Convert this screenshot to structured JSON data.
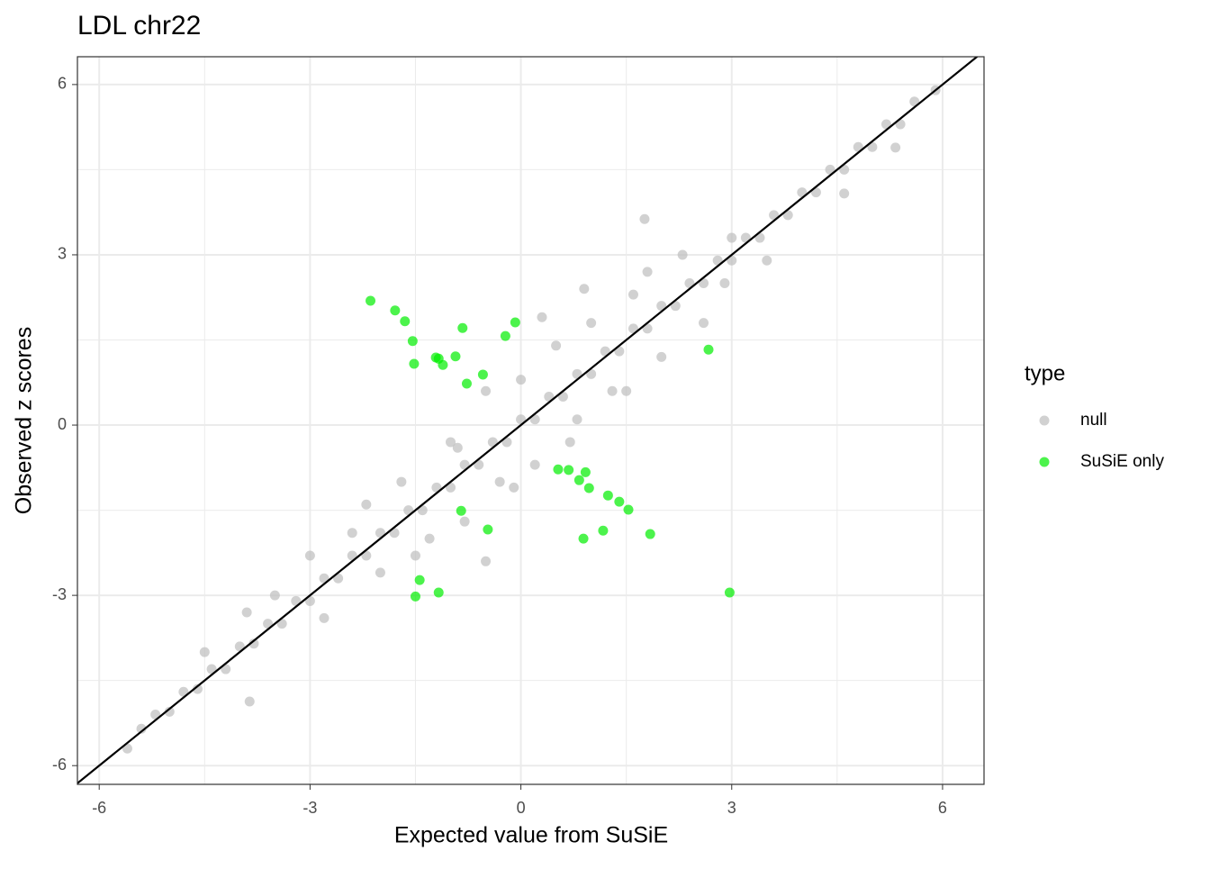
{
  "chart_data": {
    "type": "scatter",
    "title": "LDL chr22",
    "x_label": "Expected value from SuSiE",
    "y_label": "Observed z scores",
    "xlim": [
      -6.31,
      6.59
    ],
    "ylim": [
      -6.33,
      6.49
    ],
    "xticks": [
      -6,
      -3,
      0,
      3,
      6
    ],
    "yticks": [
      -6,
      -3,
      0,
      3,
      6
    ],
    "minor_xticks": [
      -4.5,
      -1.5,
      1.5,
      4.5
    ],
    "minor_yticks": [
      -4.5,
      -1.5,
      1.5,
      4.5
    ],
    "grid": true,
    "alpha": 0.7,
    "abline": {
      "slope": 1,
      "intercept": 0,
      "color": "#000000"
    },
    "legend": {
      "title": "type",
      "position": "right"
    },
    "series": [
      {
        "name": "null",
        "color": "#bebebe",
        "x": [
          -5.6,
          -5.4,
          -5.2,
          -5.0,
          -4.8,
          -4.6,
          -4.4,
          -4.2,
          -4.0,
          -3.8,
          -3.6,
          -3.4,
          -3.2,
          -3.0,
          -2.8,
          -2.6,
          -2.4,
          -2.2,
          -2.0,
          -1.8,
          -1.6,
          -1.4,
          -1.2,
          -1.0,
          -0.8,
          -0.6,
          -0.4,
          -0.2,
          0,
          0.2,
          0.4,
          0.6,
          0.8,
          1.0,
          1.2,
          1.4,
          1.6,
          1.8,
          2.0,
          2.2,
          2.4,
          2.6,
          2.8,
          3.0,
          3.2,
          3.4,
          3.6,
          3.8,
          4.0,
          4.2,
          4.4,
          4.6,
          4.8,
          5.0,
          5.2,
          5.4,
          5.6,
          5.9,
          -4.5,
          -3.9,
          -3.5,
          -3.0,
          -2.8,
          -2.4,
          -2.0,
          -1.7,
          -1.3,
          -1.0,
          -0.8,
          -0.5,
          -0.3,
          0,
          0.2,
          0.5,
          0.8,
          1.0,
          1.3,
          1.6,
          2.0,
          2.3,
          2.6,
          3.0,
          3.5,
          1.76,
          -3.86,
          5.33,
          4.6,
          -2.2,
          -1.5,
          0.3,
          0.7,
          -0.1,
          1.8,
          2.9,
          -0.9,
          -0.5,
          0.9,
          1.5
        ],
        "values": [
          -5.7,
          -5.35,
          -5.1,
          -5.05,
          -4.7,
          -4.65,
          -4.3,
          -4.3,
          -3.9,
          -3.85,
          -3.5,
          -3.5,
          -3.1,
          -3.1,
          -2.7,
          -2.7,
          -2.3,
          -2.3,
          -1.9,
          -1.9,
          -1.5,
          -1.5,
          -1.1,
          -1.1,
          -0.7,
          -0.7,
          -0.3,
          -0.3,
          0.1,
          0.1,
          0.5,
          0.5,
          0.9,
          0.9,
          1.3,
          1.3,
          1.7,
          1.7,
          2.1,
          2.1,
          2.5,
          2.5,
          2.9,
          2.9,
          3.3,
          3.3,
          3.7,
          3.7,
          4.1,
          4.1,
          4.5,
          4.5,
          4.9,
          4.9,
          5.3,
          5.3,
          5.7,
          5.9,
          -4.0,
          -3.3,
          -3.0,
          -2.3,
          -3.4,
          -1.9,
          -2.6,
          -1.0,
          -2.0,
          -0.3,
          -1.7,
          0.6,
          -1.0,
          0.8,
          -0.7,
          1.4,
          0.1,
          1.8,
          0.6,
          2.3,
          1.2,
          3.0,
          1.8,
          3.3,
          2.9,
          3.63,
          -4.87,
          4.89,
          4.08,
          -1.4,
          -2.3,
          1.9,
          -0.3,
          -1.1,
          2.7,
          2.5,
          -0.4,
          -2.4,
          2.4,
          0.6
        ]
      },
      {
        "name": "SuSiE only",
        "color": "#00ee00",
        "x": [
          -2.14,
          -1.79,
          -1.65,
          -1.54,
          -1.52,
          -1.21,
          -1.17,
          -1.11,
          -0.93,
          -0.83,
          -0.77,
          -0.22,
          -0.08,
          -0.54,
          0.53,
          0.68,
          0.83,
          0.92,
          0.97,
          1.24,
          1.4,
          1.53,
          1.84,
          1.17,
          0.89,
          -0.47,
          -0.85,
          -1.44,
          -1.5,
          -1.17,
          2.97,
          2.67
        ],
        "values": [
          2.19,
          2.02,
          1.83,
          1.48,
          1.08,
          1.19,
          1.17,
          1.06,
          1.21,
          1.71,
          0.73,
          1.57,
          1.81,
          0.89,
          -0.78,
          -0.79,
          -0.97,
          -0.83,
          -1.11,
          -1.24,
          -1.35,
          -1.49,
          -1.92,
          -1.86,
          -2.0,
          -1.84,
          -1.51,
          -2.73,
          -3.02,
          -2.95,
          -2.95,
          1.33
        ]
      }
    ]
  }
}
